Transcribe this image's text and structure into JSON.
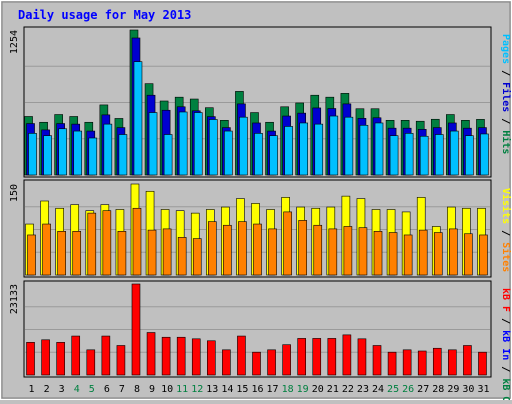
{
  "title": "Daily usage for May 2013",
  "colors": {
    "background": "#c0c0c0",
    "frame": "#000080",
    "title": "#0000ff",
    "hits": "#008040",
    "files": "#0000d0",
    "pages": "#00c0ff",
    "visits": "#ffff00",
    "sites": "#ff8000",
    "kbin": "#0000ff",
    "kbout": "#008040",
    "kbf": "#ff0000",
    "weekend": "#008040",
    "weekday": "#000000"
  },
  "chart_data": [
    {
      "type": "bar",
      "panel": "requests",
      "ylim": [
        0,
        1254
      ],
      "max_label": "1254",
      "legend": [
        "Pages",
        "Files",
        "Hits"
      ],
      "categories": [
        "1",
        "2",
        "3",
        "4",
        "5",
        "6",
        "7",
        "8",
        "9",
        "10",
        "11",
        "12",
        "13",
        "14",
        "15",
        "16",
        "17",
        "18",
        "19",
        "20",
        "21",
        "22",
        "23",
        "24",
        "25",
        "26",
        "27",
        "28",
        "29",
        "30",
        "31"
      ],
      "weekend_days": [
        4,
        5,
        11,
        12,
        18,
        19,
        25,
        26
      ],
      "series": [
        {
          "name": "Hits",
          "values": [
            506,
            456,
            523,
            506,
            456,
            606,
            489,
            1254,
            790,
            640,
            673,
            657,
            582,
            473,
            723,
            540,
            456,
            590,
            623,
            690,
            673,
            706,
            573,
            573,
            473,
            473,
            465,
            482,
            523,
            473,
            481
          ]
        },
        {
          "name": "Files",
          "values": [
            445,
            390,
            445,
            440,
            380,
            520,
            410,
            1185,
            690,
            560,
            590,
            555,
            505,
            410,
            615,
            450,
            380,
            510,
            535,
            580,
            575,
            615,
            490,
            495,
            405,
            405,
            395,
            410,
            450,
            405,
            410
          ]
        },
        {
          "name": "Pages",
          "values": [
            360,
            340,
            400,
            380,
            320,
            440,
            350,
            980,
            540,
            350,
            545,
            540,
            480,
            380,
            500,
            360,
            340,
            420,
            450,
            440,
            510,
            500,
            430,
            450,
            340,
            360,
            335,
            350,
            380,
            340,
            355
          ]
        }
      ]
    },
    {
      "type": "bar",
      "panel": "visits",
      "ylim": [
        0,
        150
      ],
      "max_label": "150",
      "legend": [
        "Visits",
        "Sites"
      ],
      "categories": [
        "1",
        "2",
        "3",
        "4",
        "5",
        "6",
        "7",
        "8",
        "9",
        "10",
        "11",
        "12",
        "13",
        "14",
        "15",
        "16",
        "17",
        "18",
        "19",
        "20",
        "21",
        "22",
        "23",
        "24",
        "25",
        "26",
        "27",
        "28",
        "29",
        "30",
        "31"
      ],
      "weekend_days": [
        4,
        5,
        11,
        12,
        18,
        19,
        25,
        26
      ],
      "series": [
        {
          "name": "Visits",
          "values": [
            84,
            122,
            110,
            116,
            106,
            116,
            108,
            150,
            138,
            108,
            106,
            102,
            108,
            112,
            126,
            118,
            108,
            128,
            112,
            110,
            112,
            130,
            126,
            108,
            108,
            104,
            128,
            80,
            112,
            110,
            110
          ]
        },
        {
          "name": "Sites",
          "values": [
            66,
            84,
            72,
            72,
            102,
            106,
            72,
            110,
            74,
            76,
            62,
            60,
            88,
            82,
            88,
            84,
            76,
            104,
            90,
            82,
            76,
            80,
            78,
            72,
            70,
            66,
            74,
            70,
            76,
            68,
            66
          ]
        }
      ]
    },
    {
      "type": "bar",
      "panel": "traffic",
      "ylim": [
        0,
        23133
      ],
      "max_label": "23133",
      "legend": [
        "kB F",
        "kB In",
        "kB Out"
      ],
      "categories": [
        "1",
        "2",
        "3",
        "4",
        "5",
        "6",
        "7",
        "8",
        "9",
        "10",
        "11",
        "12",
        "13",
        "14",
        "15",
        "16",
        "17",
        "18",
        "19",
        "20",
        "21",
        "22",
        "23",
        "24",
        "25",
        "26",
        "27",
        "28",
        "29",
        "30",
        "31"
      ],
      "weekend_days": [
        4,
        5,
        11,
        12,
        18,
        19,
        25,
        26
      ],
      "series": [
        {
          "name": "kB F",
          "values": [
            8300,
            8950,
            8300,
            9900,
            6400,
            9900,
            7500,
            23133,
            10800,
            9600,
            9600,
            9200,
            8700,
            6400,
            9900,
            5800,
            6400,
            7700,
            9300,
            9300,
            9300,
            10200,
            9200,
            7500,
            5800,
            6400,
            6100,
            6800,
            6400,
            7500,
            5800
          ]
        }
      ]
    }
  ]
}
